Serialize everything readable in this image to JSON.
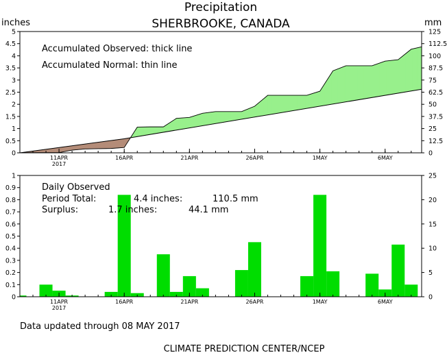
{
  "header": {
    "title": "Precipitation",
    "subtitle": "SHERBROOKE, CANADA"
  },
  "footer": {
    "updated": "Data updated through 08 MAY 2017",
    "credit": "CLIMATE PREDICTION CENTER/NCEP"
  },
  "colors": {
    "surplus_fill": "#98f08c",
    "deficit_fill": "#b48c78",
    "bar_fill": "#00dd00",
    "axis": "#000000"
  },
  "chart_data": [
    {
      "type": "area",
      "ylabel_left": "inches",
      "ylabel_right": "mm",
      "annotations": [
        "Accumulated Observed: thick line",
        "Accumulated Normal: thin line"
      ],
      "ylim": [
        0,
        5
      ],
      "ylim_right": [
        0,
        125
      ],
      "yticks_left": [
        "0",
        "0.5",
        "1",
        "1.5",
        "2",
        "2.5",
        "3",
        "3.5",
        "4",
        "4.5",
        "5"
      ],
      "yticks_right": [
        "0",
        "12.5",
        "25",
        "37.5",
        "50",
        "62.5",
        "75",
        "87.5",
        "100",
        "112.5",
        "125"
      ],
      "x_tick_labels": [
        {
          "day": 10,
          "label": "11APR",
          "sub": "2017"
        },
        {
          "day": 15,
          "label": "16APR",
          "sub": ""
        },
        {
          "day": 20,
          "label": "21APR",
          "sub": ""
        },
        {
          "day": 25,
          "label": "26APR",
          "sub": ""
        },
        {
          "day": 30,
          "label": "1MAY",
          "sub": ""
        },
        {
          "day": 35,
          "label": "6MAY",
          "sub": ""
        }
      ],
      "xlim": [
        7,
        37.8
      ],
      "observed": [
        [
          7,
          0
        ],
        [
          8,
          0.01
        ],
        [
          9,
          0.01
        ],
        [
          10,
          0.01
        ],
        [
          11,
          0.11
        ],
        [
          12,
          0.16
        ],
        [
          13,
          0.17
        ],
        [
          14,
          0.18
        ],
        [
          15,
          0.22
        ],
        [
          16,
          1.06
        ],
        [
          17,
          1.07
        ],
        [
          18,
          1.07
        ],
        [
          19,
          1.42
        ],
        [
          20,
          1.46
        ],
        [
          21,
          1.63
        ],
        [
          22,
          1.7
        ],
        [
          23,
          1.7
        ],
        [
          24,
          1.7
        ],
        [
          25,
          1.92
        ],
        [
          26,
          2.37
        ],
        [
          27,
          2.37
        ],
        [
          28,
          2.37
        ],
        [
          29,
          2.37
        ],
        [
          30,
          2.54
        ],
        [
          31,
          3.38
        ],
        [
          32,
          3.59
        ],
        [
          33,
          3.59
        ],
        [
          34,
          3.59
        ],
        [
          35,
          3.78
        ],
        [
          36,
          3.84
        ],
        [
          37,
          4.27
        ],
        [
          37.8,
          4.37
        ]
      ],
      "normal": [
        [
          7,
          0
        ],
        [
          15,
          0.58
        ],
        [
          37.8,
          2.62
        ]
      ]
    },
    {
      "type": "bar",
      "title": "Daily Observed",
      "annotations": [
        {
          "label": "Period Total:",
          "inches": "4.4 inches:",
          "mm": "110.5 mm"
        },
        {
          "label": "Surplus:",
          "inches": "1.7 inches:",
          "mm": "44.1 mm"
        }
      ],
      "ylim": [
        0,
        1
      ],
      "ylim_right": [
        0,
        25
      ],
      "yticks_left": [
        "0",
        "0.1",
        "0.2",
        "0.3",
        "0.4",
        "0.5",
        "0.6",
        "0.7",
        "0.8",
        "0.9",
        "1"
      ],
      "yticks_right": [
        "0",
        "5",
        "10",
        "15",
        "20",
        "25"
      ],
      "x_tick_labels": [
        {
          "day": 10,
          "label": "11APR",
          "sub": "2017"
        },
        {
          "day": 15,
          "label": "16APR",
          "sub": ""
        },
        {
          "day": 20,
          "label": "21APR",
          "sub": ""
        },
        {
          "day": 25,
          "label": "26APR",
          "sub": ""
        },
        {
          "day": 30,
          "label": "1MAY",
          "sub": ""
        },
        {
          "day": 35,
          "label": "6MAY",
          "sub": ""
        }
      ],
      "xlim": [
        7,
        37.8
      ],
      "bars": [
        {
          "day": 7,
          "value": 0.01
        },
        {
          "day": 9,
          "value": 0.1
        },
        {
          "day": 10,
          "value": 0.05
        },
        {
          "day": 11,
          "value": 0.01
        },
        {
          "day": 14,
          "value": 0.04
        },
        {
          "day": 15,
          "value": 0.84
        },
        {
          "day": 16,
          "value": 0.03
        },
        {
          "day": 18,
          "value": 0.35
        },
        {
          "day": 19,
          "value": 0.04
        },
        {
          "day": 20,
          "value": 0.17
        },
        {
          "day": 21,
          "value": 0.07
        },
        {
          "day": 24,
          "value": 0.22
        },
        {
          "day": 25,
          "value": 0.45
        },
        {
          "day": 29,
          "value": 0.17
        },
        {
          "day": 30,
          "value": 0.84
        },
        {
          "day": 31,
          "value": 0.21
        },
        {
          "day": 34,
          "value": 0.19
        },
        {
          "day": 35,
          "value": 0.06
        },
        {
          "day": 36,
          "value": 0.43
        },
        {
          "day": 37,
          "value": 0.1
        }
      ]
    }
  ]
}
